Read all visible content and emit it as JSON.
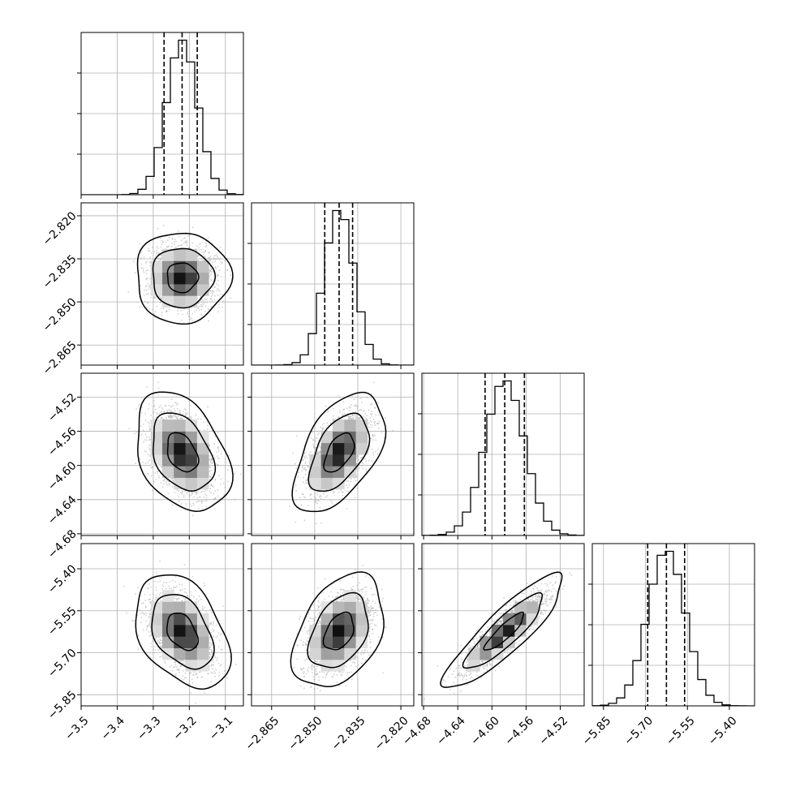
{
  "chart_data": {
    "type": "corner",
    "parameters": [
      {
        "mean": -3.22,
        "sd": 0.043,
        "quantiles": [
          -3.27,
          -3.22,
          -3.178
        ],
        "range": [
          -3.5,
          -3.05
        ],
        "ticks": [
          -3.5,
          -3.4,
          -3.3,
          -3.2,
          -3.1
        ],
        "tick_labels": [
          "−3.5",
          "−3.4",
          "−3.3",
          "−3.2",
          "−3.1"
        ]
      },
      {
        "mean": -2.8415,
        "sd": 0.0052,
        "quantiles": [
          -2.8465,
          -2.8415,
          -2.8368
        ],
        "range": [
          -2.872,
          -2.8155
        ],
        "ticks": [
          -2.865,
          -2.85,
          -2.835,
          -2.82
        ],
        "tick_labels": [
          "−2.865",
          "−2.850",
          "−2.835",
          "−2.820"
        ]
      },
      {
        "mean": -4.585,
        "sd": 0.023,
        "quantiles": [
          -4.608,
          -4.585,
          -4.562
        ],
        "range": [
          -4.682,
          -4.492
        ],
        "ticks": [
          -4.68,
          -4.64,
          -4.6,
          -4.56,
          -4.52
        ],
        "tick_labels": [
          "−4.68",
          "−4.64",
          "−4.60",
          "−4.56",
          "−4.52"
        ]
      },
      {
        "mean": -5.625,
        "sd": 0.067,
        "quantiles": [
          -5.692,
          -5.625,
          -5.56
        ],
        "range": [
          -5.89,
          -5.31
        ],
        "ticks": [
          -5.85,
          -5.7,
          -5.55,
          -5.4
        ],
        "tick_labels": [
          "−5.85",
          "−5.70",
          "−5.55",
          "−5.40"
        ]
      }
    ],
    "correlations": [
      [
        1.0,
        0.0,
        -0.35,
        -0.38
      ],
      [
        0.0,
        1.0,
        0.52,
        0.38
      ],
      [
        -0.35,
        0.52,
        1.0,
        0.88
      ],
      [
        -0.38,
        0.38,
        0.88,
        1.0
      ]
    ],
    "histogram_bins": 20,
    "contour_levels": [
      0.39,
      0.86,
      0.99
    ],
    "colors": {
      "line": "#000000",
      "points": "#aaaaaa",
      "grid": "#b0b0b0"
    },
    "grid": true
  }
}
